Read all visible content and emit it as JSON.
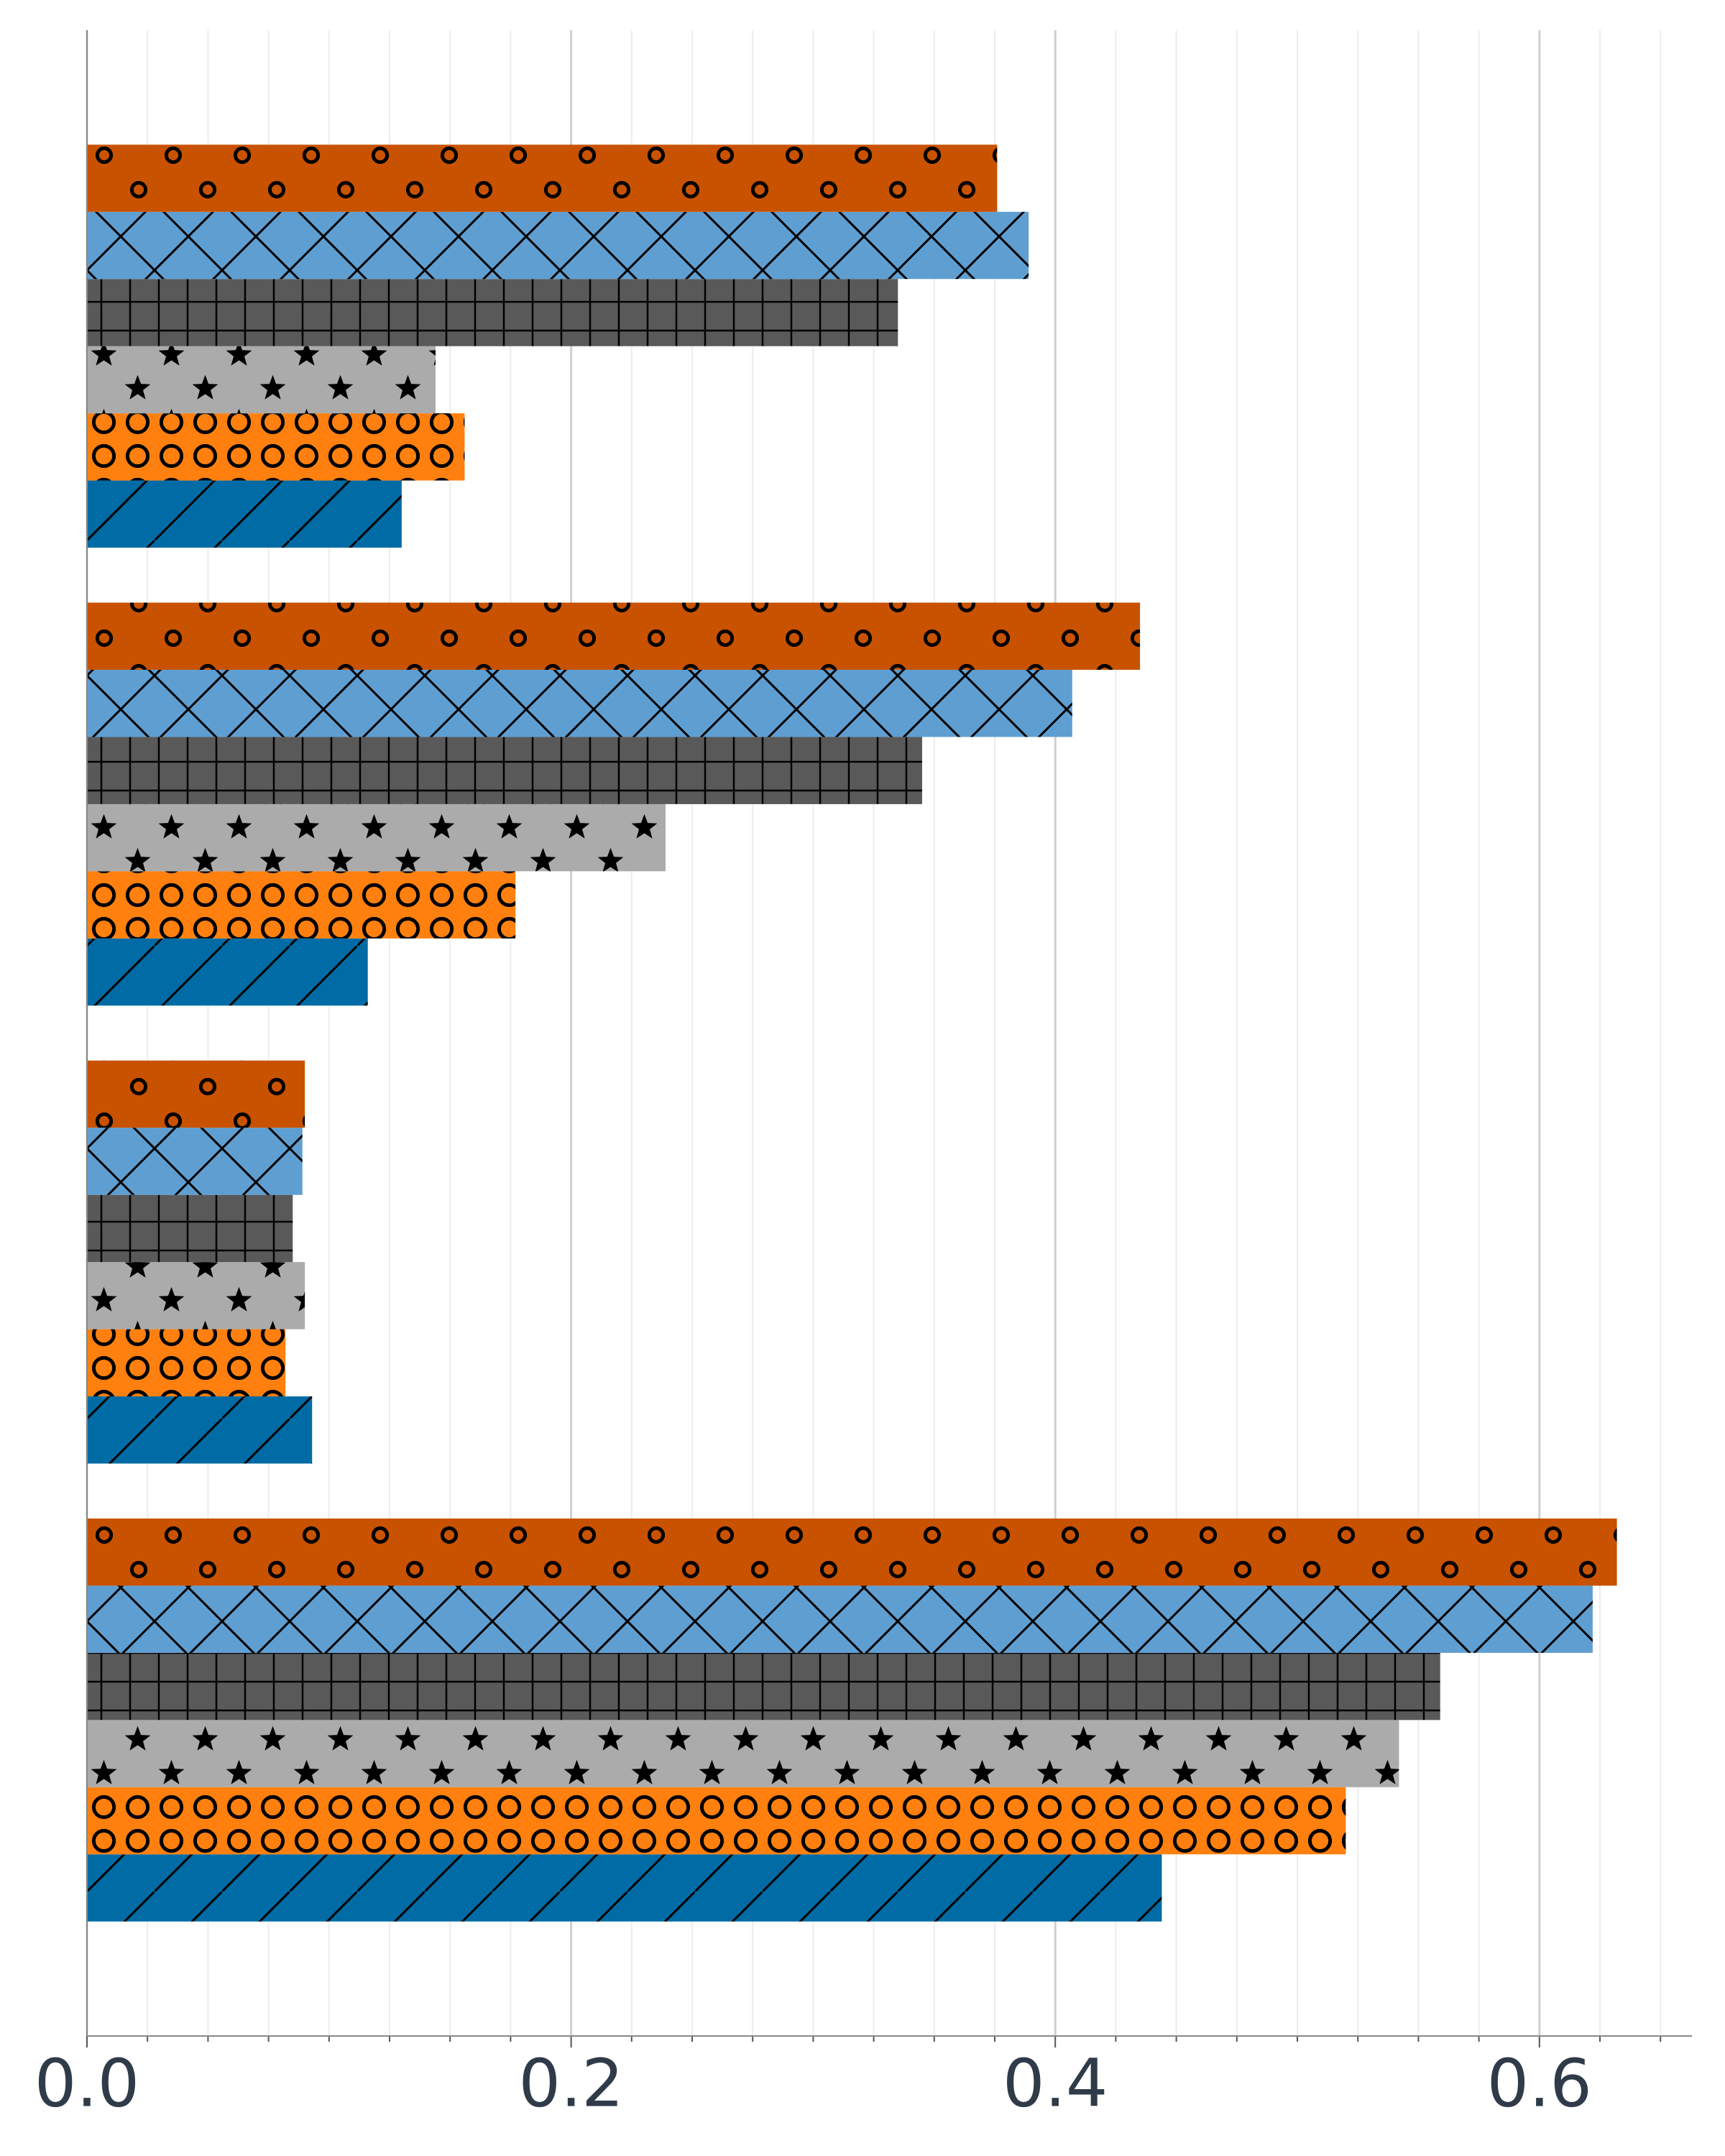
{
  "chart_data": {
    "type": "barh",
    "categories": [
      null,
      null,
      null,
      null
    ],
    "series": [
      {
        "color": "#006ba4",
        "hatch": "/",
        "values": [
          0.444,
          0.093,
          0.116,
          0.13
        ]
      },
      {
        "color": "#ff800e",
        "hatch": "O",
        "values": [
          0.52,
          0.082,
          0.177,
          0.156
        ]
      },
      {
        "color": "#ababab",
        "hatch": "*",
        "values": [
          0.542,
          0.09,
          0.239,
          0.144
        ]
      },
      {
        "color": "#595959",
        "hatch": "+",
        "values": [
          0.559,
          0.085,
          0.345,
          0.335
        ]
      },
      {
        "color": "#5f9ed1",
        "hatch": "x",
        "values": [
          0.622,
          0.089,
          0.407,
          0.389
        ]
      },
      {
        "color": "#c85200",
        "hatch": "o",
        "values": [
          0.632,
          0.09,
          0.435,
          0.376
        ]
      }
    ],
    "xlim": [
      0,
      0.663
    ],
    "xticks": [
      {
        "value": 0,
        "label": "0.0"
      },
      {
        "value": 0.2,
        "label": "0.2"
      },
      {
        "value": 0.4,
        "label": "0.4"
      },
      {
        "value": 0.6,
        "label": "0.6"
      }
    ],
    "xminorticks": [
      0.025,
      0.05,
      0.075,
      0.1,
      0.125,
      0.15,
      0.175,
      0.225,
      0.25,
      0.275,
      0.3,
      0.325,
      0.35,
      0.375,
      0.425,
      0.45,
      0.475,
      0.5,
      0.525,
      0.55,
      0.575,
      0.625,
      0.65
    ],
    "grid": true
  }
}
